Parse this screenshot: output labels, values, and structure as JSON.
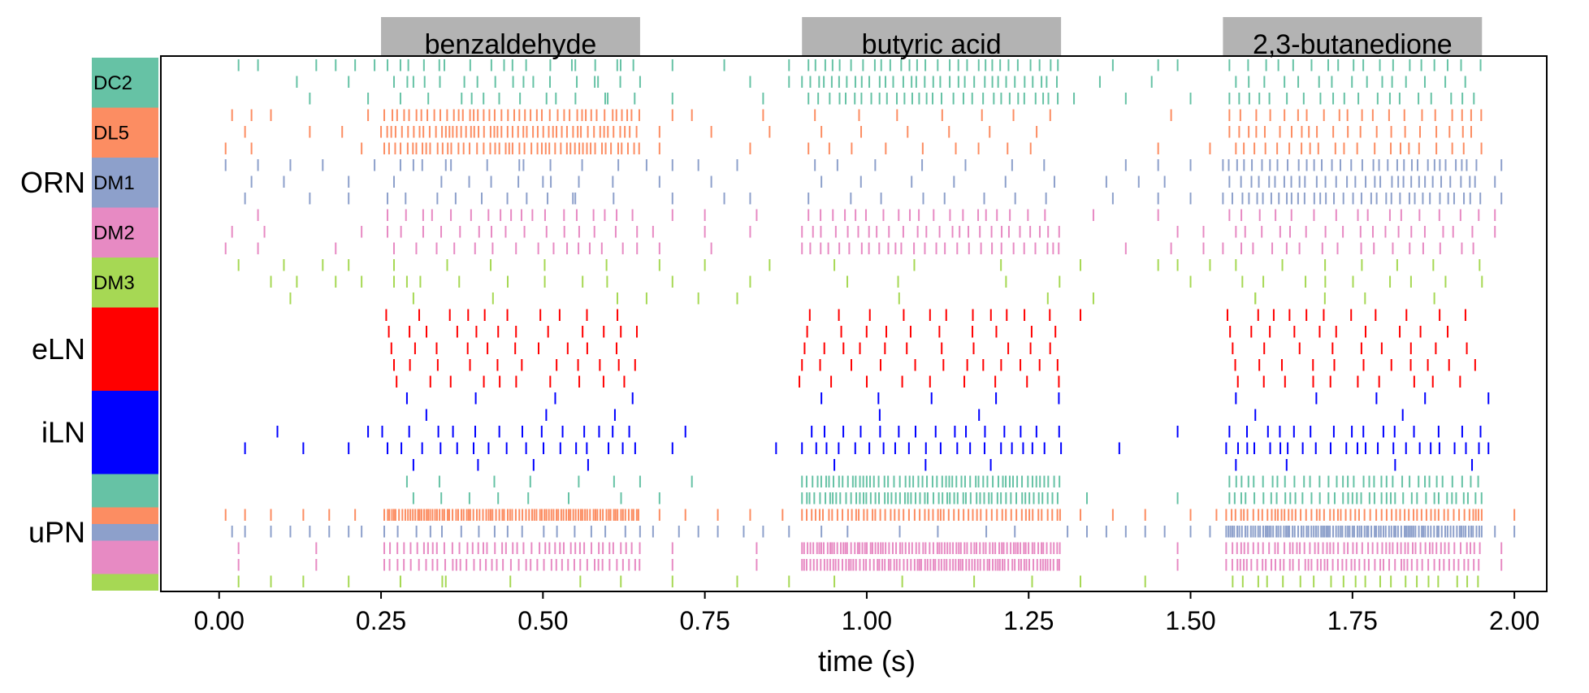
{
  "chart_data": {
    "type": "raster",
    "title": "",
    "xlabel": "time (s)",
    "ylabel": "",
    "xlim": [
      -0.09,
      2.05
    ],
    "xticks": [
      "0.00",
      "0.25",
      "0.50",
      "0.75",
      "1.00",
      "1.25",
      "1.50",
      "1.75",
      "2.00"
    ],
    "xtick_values": [
      0.0,
      0.25,
      0.5,
      0.75,
      1.0,
      1.25,
      1.5,
      1.75,
      2.0
    ],
    "stimuli": [
      {
        "label": "benzaldehyde",
        "start": 0.25,
        "end": 0.65,
        "color": "#b3b3b3"
      },
      {
        "label": "butyric acid",
        "start": 0.9,
        "end": 1.3,
        "color": "#b3b3b3"
      },
      {
        "label": "2,3-butanedione",
        "start": 1.55,
        "end": 1.95,
        "color": "#b3b3b3"
      }
    ],
    "groups": [
      {
        "label": "ORN",
        "rows_from": 0,
        "rows_to": 15
      },
      {
        "label": "eLN",
        "rows_from": 15,
        "rows_to": 20
      },
      {
        "label": "iLN",
        "rows_from": 20,
        "rows_to": 25
      },
      {
        "label": "uPN",
        "rows_from": 25,
        "rows_to": 32
      }
    ],
    "color_blocks": [
      {
        "label": "DC2",
        "rows_from": 0,
        "rows_to": 3,
        "color": "#66c2a5"
      },
      {
        "label": "DL5",
        "rows_from": 3,
        "rows_to": 6,
        "color": "#fc8d62"
      },
      {
        "label": "DM1",
        "rows_from": 6,
        "rows_to": 9,
        "color": "#8da0cb"
      },
      {
        "label": "DM2",
        "rows_from": 9,
        "rows_to": 12,
        "color": "#e78ac3"
      },
      {
        "label": "DM3",
        "rows_from": 12,
        "rows_to": 15,
        "color": "#a6d854"
      },
      {
        "label": "",
        "rows_from": 15,
        "rows_to": 20,
        "color": "#ff0000"
      },
      {
        "label": "",
        "rows_from": 20,
        "rows_to": 25,
        "color": "#0000ff"
      },
      {
        "label": "",
        "rows_from": 25,
        "rows_to": 27,
        "color": "#66c2a5"
      },
      {
        "label": "",
        "rows_from": 27,
        "rows_to": 28,
        "color": "#fc8d62"
      },
      {
        "label": "",
        "rows_from": 28,
        "rows_to": 29,
        "color": "#8da0cb"
      },
      {
        "label": "",
        "rows_from": 29,
        "rows_to": 31,
        "color": "#e78ac3"
      },
      {
        "label": "",
        "rows_from": 31,
        "rows_to": 32,
        "color": "#a6d854"
      }
    ],
    "rows": [
      {
        "color": "#66c2a5",
        "base": [
          0.03,
          0.06,
          0.15,
          0.18,
          0.21,
          0.24,
          0.28,
          0.34,
          0.44,
          0.55,
          0.62,
          0.7,
          0.78,
          0.88,
          1.38,
          1.45,
          1.48
        ],
        "stim": [
          {
            "rate": 35,
            "first": 0.26
          },
          {
            "rate": 70,
            "first": 0.91
          },
          {
            "rate": 45,
            "first": 1.56
          }
        ]
      },
      {
        "color": "#66c2a5",
        "base": [
          0.12,
          0.2,
          0.3,
          0.47,
          0.58,
          0.65,
          0.82,
          0.88,
          1.36,
          1.44
        ],
        "stim": [
          {
            "rate": 30,
            "first": 0.27
          },
          {
            "rate": 85,
            "first": 0.9
          },
          {
            "rate": 40,
            "first": 1.57
          }
        ]
      },
      {
        "color": "#66c2a5",
        "base": [
          0.14,
          0.23,
          0.39,
          0.52,
          0.6,
          0.7,
          0.84,
          1.32,
          1.4,
          1.5
        ],
        "stim": [
          {
            "rate": 25,
            "first": 0.28
          },
          {
            "rate": 75,
            "first": 0.91
          },
          {
            "rate": 45,
            "first": 1.56
          }
        ]
      },
      {
        "color": "#fc8d62",
        "base": [
          0.02,
          0.05,
          0.08,
          0.23,
          0.7,
          0.73,
          0.84,
          1.47
        ],
        "stim": [
          {
            "rate": 110,
            "first": 0.255
          },
          {
            "rate": 20,
            "first": 0.92
          },
          {
            "rate": 50,
            "first": 1.56
          }
        ]
      },
      {
        "color": "#fc8d62",
        "base": [
          0.04,
          0.14,
          0.19,
          0.68,
          0.76,
          0.85
        ],
        "stim": [
          {
            "rate": 130,
            "first": 0.25
          },
          {
            "rate": 16,
            "first": 0.93
          },
          {
            "rate": 55,
            "first": 1.56
          }
        ]
      },
      {
        "color": "#fc8d62",
        "base": [
          0.01,
          0.05,
          0.22,
          0.68,
          0.82,
          1.45,
          1.53
        ],
        "stim": [
          {
            "rate": 120,
            "first": 0.255
          },
          {
            "rate": 22,
            "first": 0.91
          },
          {
            "rate": 50,
            "first": 1.57
          }
        ]
      },
      {
        "color": "#8da0cb",
        "base": [
          0.01,
          0.06,
          0.11,
          0.16,
          0.24,
          0.3,
          0.35,
          0.47,
          0.66,
          0.7,
          0.74,
          0.8,
          1.4,
          1.45,
          1.5,
          1.98
        ],
        "stim": [
          {
            "rate": 20,
            "first": 0.28
          },
          {
            "rate": 18,
            "first": 0.92
          },
          {
            "rate": 80,
            "first": 1.55
          }
        ]
      },
      {
        "color": "#8da0cb",
        "base": [
          0.05,
          0.1,
          0.2,
          0.27,
          0.42,
          0.5,
          0.68,
          0.76,
          1.37,
          1.42,
          1.46,
          1.97
        ],
        "stim": [
          {
            "rate": 18,
            "first": 0.27
          },
          {
            "rate": 15,
            "first": 0.93
          },
          {
            "rate": 75,
            "first": 1.56
          }
        ]
      },
      {
        "color": "#8da0cb",
        "base": [
          0.04,
          0.14,
          0.2,
          0.55,
          0.7,
          0.78,
          0.82,
          1.38,
          1.45,
          1.5,
          1.98
        ],
        "stim": [
          {
            "rate": 22,
            "first": 0.26
          },
          {
            "rate": 20,
            "first": 0.91
          },
          {
            "rate": 85,
            "first": 1.55
          }
        ]
      },
      {
        "color": "#e78ac3",
        "base": [
          0.06,
          0.7,
          0.75,
          0.83,
          1.35,
          1.45,
          1.97
        ],
        "stim": [
          {
            "rate": 45,
            "first": 0.26
          },
          {
            "rate": 50,
            "first": 0.91
          },
          {
            "rate": 40,
            "first": 1.56
          }
        ]
      },
      {
        "color": "#e78ac3",
        "base": [
          0.02,
          0.07,
          0.22,
          0.67,
          0.75,
          0.82,
          1.48,
          1.52,
          1.97
        ],
        "stim": [
          {
            "rate": 40,
            "first": 0.26
          },
          {
            "rate": 60,
            "first": 0.9
          },
          {
            "rate": 45,
            "first": 1.57
          }
        ]
      },
      {
        "color": "#e78ac3",
        "base": [
          0.01,
          0.06,
          0.18,
          0.68,
          0.76,
          1.4,
          1.47,
          1.52
        ],
        "stim": [
          {
            "rate": 38,
            "first": 0.27
          },
          {
            "rate": 70,
            "first": 0.9
          },
          {
            "rate": 35,
            "first": 1.55
          }
        ]
      },
      {
        "color": "#a6d854",
        "base": [
          0.03,
          0.1,
          0.16,
          0.2,
          0.68,
          0.75,
          0.85,
          1.33,
          1.45,
          1.48,
          1.53
        ],
        "stim": [
          {
            "rate": 12,
            "first": 0.27
          },
          {
            "rate": 6,
            "first": 0.95
          },
          {
            "rate": 15,
            "first": 1.57
          }
        ]
      },
      {
        "color": "#a6d854",
        "base": [
          0.08,
          0.12,
          0.18,
          0.22,
          0.29,
          0.7,
          0.82,
          1.5,
          1.95
        ],
        "stim": [
          {
            "rate": 18,
            "first": 0.27
          },
          {
            "rate": 8,
            "first": 0.97
          },
          {
            "rate": 20,
            "first": 1.58
          }
        ]
      },
      {
        "color": "#a6d854",
        "base": [
          0.11,
          0.66,
          0.74,
          0.8,
          1.35,
          1.6
        ],
        "stim": [
          {
            "rate": 6,
            "first": 0.3
          },
          {
            "rate": 3,
            "first": 1.05
          },
          {
            "rate": 10,
            "first": 1.6
          }
        ]
      },
      {
        "color": "#ff0000",
        "base": [
          1.33
        ],
        "stim": [
          {
            "rate": 25,
            "first": 0.258
          },
          {
            "rate": 25,
            "first": 0.912
          },
          {
            "rate": 25,
            "first": 1.557
          }
        ]
      },
      {
        "color": "#ff0000",
        "base": [],
        "stim": [
          {
            "rate": 25,
            "first": 0.262
          },
          {
            "rate": 25,
            "first": 0.908
          },
          {
            "rate": 25,
            "first": 1.561
          }
        ]
      },
      {
        "color": "#ff0000",
        "base": [],
        "stim": [
          {
            "rate": 25,
            "first": 0.266
          },
          {
            "rate": 25,
            "first": 0.904
          },
          {
            "rate": 25,
            "first": 1.565
          }
        ]
      },
      {
        "color": "#ff0000",
        "base": [],
        "stim": [
          {
            "rate": 25,
            "first": 0.27
          },
          {
            "rate": 25,
            "first": 0.9
          },
          {
            "rate": 25,
            "first": 1.569
          }
        ]
      },
      {
        "color": "#ff0000",
        "base": [],
        "stim": [
          {
            "rate": 25,
            "first": 0.274
          },
          {
            "rate": 25,
            "first": 0.896
          },
          {
            "rate": 25,
            "first": 1.573
          }
        ]
      },
      {
        "color": "#0000ff",
        "base": [
          1.96
        ],
        "stim": [
          {
            "rate": 11,
            "first": 0.29
          },
          {
            "rate": 11,
            "first": 0.93
          },
          {
            "rate": 10,
            "first": 1.57
          }
        ]
      },
      {
        "color": "#0000ff",
        "base": [],
        "stim": [
          {
            "rate": 6,
            "first": 0.32
          },
          {
            "rate": 5,
            "first": 1.02
          },
          {
            "rate": 6,
            "first": 1.6
          }
        ]
      },
      {
        "color": "#0000ff",
        "base": [
          0.09,
          0.72,
          1.48
        ],
        "stim": [
          {
            "rate": 30,
            "first": 0.23
          },
          {
            "rate": 38,
            "first": 0.915
          },
          {
            "rate": 35,
            "first": 1.56
          }
        ]
      },
      {
        "color": "#0000ff",
        "base": [
          0.04,
          0.13,
          0.2,
          0.7,
          0.86,
          1.3,
          1.39,
          1.96
        ],
        "stim": [
          {
            "rate": 40,
            "first": 0.26
          },
          {
            "rate": 48,
            "first": 0.9
          },
          {
            "rate": 55,
            "first": 1.555
          }
        ]
      },
      {
        "color": "#0000ff",
        "base": [],
        "stim": [
          {
            "rate": 8,
            "first": 0.3
          },
          {
            "rate": 9,
            "first": 0.95
          },
          {
            "rate": 8,
            "first": 1.57
          }
        ]
      },
      {
        "color": "#66c2a5",
        "base": [
          0.65,
          0.73
        ],
        "stim": [
          {
            "rate": 12,
            "first": 0.29
          },
          {
            "rate": 150,
            "first": 0.9
          },
          {
            "rate": 90,
            "first": 1.56
          }
        ]
      },
      {
        "color": "#66c2a5",
        "base": [
          0.68,
          1.34,
          1.48
        ],
        "stim": [
          {
            "rate": 15,
            "first": 0.3
          },
          {
            "rate": 150,
            "first": 0.9
          },
          {
            "rate": 95,
            "first": 1.56
          }
        ]
      },
      {
        "color": "#fc8d62",
        "base": [
          0.01,
          0.04,
          0.08,
          0.13,
          0.17,
          0.21,
          0.68,
          0.72,
          0.77,
          0.82,
          0.87,
          1.33,
          1.38,
          1.43,
          1.5,
          1.54,
          2.0
        ],
        "stim": [
          {
            "rate": 250,
            "first": 0.255
          },
          {
            "rate": 150,
            "first": 0.9
          },
          {
            "rate": 150,
            "first": 1.555
          }
        ]
      },
      {
        "color": "#8da0cb",
        "base": [
          0.02,
          0.04,
          0.08,
          0.11,
          0.14,
          0.17,
          0.2,
          0.22,
          0.67,
          0.71,
          0.74,
          0.77,
          0.81,
          0.84,
          0.88,
          1.31,
          1.34,
          1.37,
          1.4,
          1.43,
          1.46,
          1.5,
          1.53,
          1.97,
          2.0
        ],
        "stim": [
          {
            "rate": 40,
            "first": 0.255
          },
          {
            "rate": 15,
            "first": 0.93
          },
          {
            "rate": 260,
            "first": 1.555
          }
        ]
      },
      {
        "color": "#e78ac3",
        "base": [
          0.03,
          0.15,
          0.7,
          0.83,
          1.48,
          1.98
        ],
        "stim": [
          {
            "rate": 110,
            "first": 0.255
          },
          {
            "rate": 220,
            "first": 0.9
          },
          {
            "rate": 140,
            "first": 1.555
          }
        ]
      },
      {
        "color": "#e78ac3",
        "base": [
          0.03,
          0.15,
          0.7,
          0.83,
          1.48,
          1.98
        ],
        "stim": [
          {
            "rate": 110,
            "first": 0.255
          },
          {
            "rate": 220,
            "first": 0.9
          },
          {
            "rate": 140,
            "first": 1.555
          }
        ]
      },
      {
        "color": "#a6d854",
        "base": [
          0.03,
          0.08,
          0.13,
          0.2,
          0.28,
          0.35,
          0.7,
          0.8,
          0.88,
          1.33,
          1.43
        ],
        "stim": [
          {
            "rate": 12,
            "first": 0.28
          },
          {
            "rate": 10,
            "first": 0.95
          },
          {
            "rate": 45,
            "first": 1.565
          }
        ]
      }
    ]
  }
}
